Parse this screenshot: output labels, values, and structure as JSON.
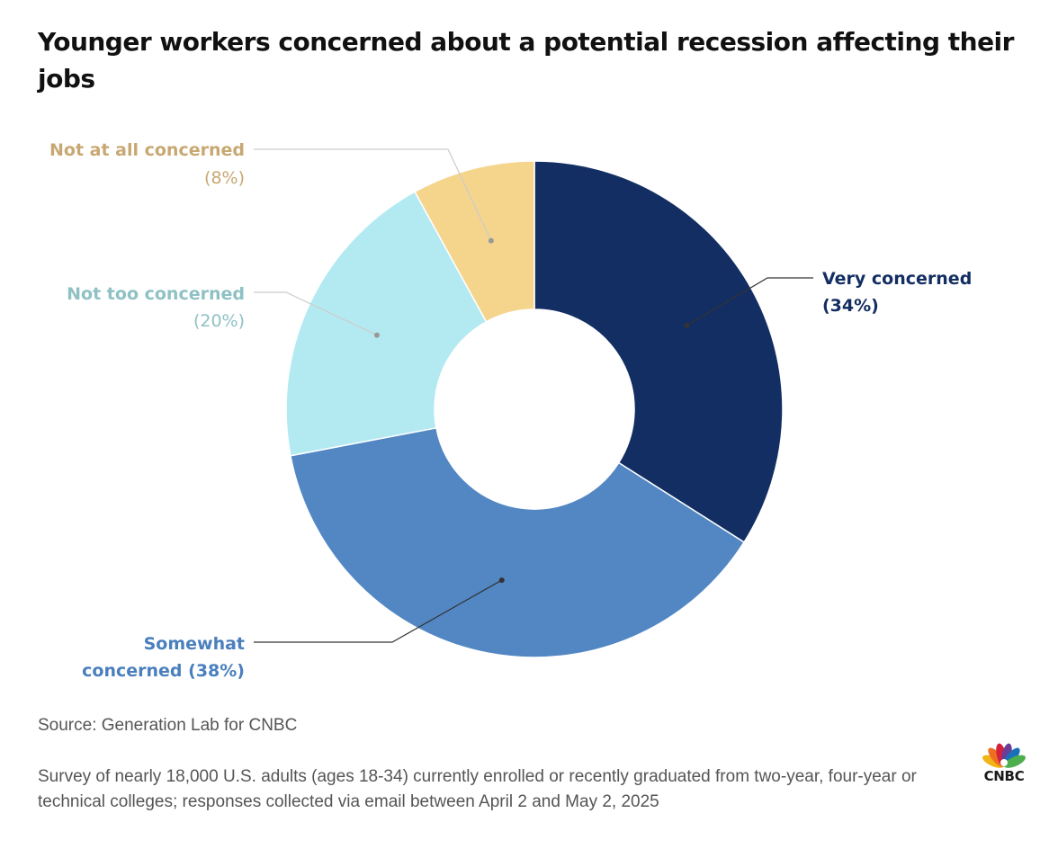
{
  "title": "Younger workers concerned about a potential recession affecting their jobs",
  "source": "Source: Generation Lab for CNBC",
  "note": "Survey of nearly 18,000 U.S. adults (ages 18-34) currently enrolled or recently graduated from two-year, four-year or technical colleges; responses collected via email between April 2 and May 2, 2025",
  "logo": {
    "text": "CNBC",
    "icon": "nbc-peacock-icon",
    "colors": [
      "#f2b417",
      "#ee6f22",
      "#d4203a",
      "#6a3d98",
      "#1a70b8",
      "#4cae4c"
    ]
  },
  "chart_data": {
    "type": "pie",
    "variant": "donut",
    "title": "Younger workers concerned about a potential recession affecting their jobs",
    "slices": [
      {
        "key": "very",
        "label": "Very concerned",
        "value_label": "(34%)",
        "value": 34,
        "color": "#132e62",
        "label_color": "#132e62"
      },
      {
        "key": "somewhat",
        "label": "Somewhat concerned",
        "value_label": "(38%)",
        "value": 38,
        "color": "#5287c4",
        "label_color": "#4a7fbe"
      },
      {
        "key": "nottoo",
        "label": "Not too concerned",
        "value_label": "(20%)",
        "value": 20,
        "color": "#b3eaf2",
        "label_color": "#8fc1c4"
      },
      {
        "key": "notatall",
        "label": "Not at all concerned",
        "value_label": "(8%)",
        "value": 8,
        "color": "#f5d48c",
        "label_color": "#c8a872"
      }
    ],
    "start": "12 o'clock",
    "direction": "clockwise",
    "legend": "none",
    "labels": "callouts"
  }
}
